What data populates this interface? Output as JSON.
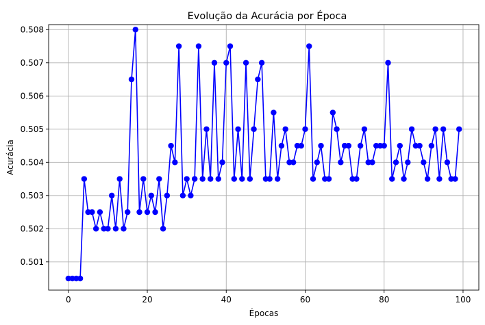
{
  "chart_data": {
    "type": "line",
    "title": "Evolução da Acurácia por Época",
    "xlabel": "Épocas",
    "ylabel": "Acurácia",
    "xlim": [
      -5,
      104
    ],
    "ylim": [
      0.50015,
      0.50815
    ],
    "xticks": [
      0,
      20,
      40,
      60,
      80,
      100
    ],
    "yticks": [
      0.501,
      0.502,
      0.503,
      0.504,
      0.505,
      0.506,
      0.507,
      0.508
    ],
    "grid": true,
    "color": "#0000ff",
    "series": [
      {
        "x": [
          0,
          1,
          2,
          3,
          4,
          5,
          6,
          7,
          8,
          9,
          10,
          11,
          12,
          13,
          14,
          15,
          16,
          17,
          18,
          19,
          20,
          21,
          22,
          23,
          24,
          25,
          26,
          27,
          28,
          29,
          30,
          31,
          32,
          33,
          34,
          35,
          36,
          37,
          38,
          39,
          40,
          41,
          42,
          43,
          44,
          45,
          46,
          47,
          48,
          49,
          50,
          51,
          52,
          53,
          54,
          55,
          56,
          57,
          58,
          59,
          60,
          61,
          62,
          63,
          64,
          65,
          66,
          67,
          68,
          69,
          70,
          71,
          72,
          73,
          74,
          75,
          76,
          77,
          78,
          79,
          80,
          81,
          82,
          83,
          84,
          85,
          86,
          87,
          88,
          89,
          90,
          91,
          92,
          93,
          94,
          95,
          96,
          97,
          98,
          99
        ],
        "values": [
          0.5005,
          0.5005,
          0.5005,
          0.5005,
          0.5035,
          0.5025,
          0.5025,
          0.502,
          0.5025,
          0.502,
          0.502,
          0.503,
          0.502,
          0.5035,
          0.502,
          0.5025,
          0.5065,
          0.508,
          0.5025,
          0.5035,
          0.5025,
          0.503,
          0.5025,
          0.5035,
          0.502,
          0.503,
          0.5045,
          0.504,
          0.5075,
          0.503,
          0.5035,
          0.503,
          0.5035,
          0.5075,
          0.5035,
          0.505,
          0.5035,
          0.507,
          0.5035,
          0.504,
          0.507,
          0.5075,
          0.5035,
          0.505,
          0.5035,
          0.507,
          0.5035,
          0.505,
          0.5065,
          0.507,
          0.5035,
          0.5035,
          0.5055,
          0.5035,
          0.5045,
          0.505,
          0.504,
          0.504,
          0.5045,
          0.5045,
          0.505,
          0.5075,
          0.5035,
          0.504,
          0.5045,
          0.5035,
          0.5035,
          0.5055,
          0.505,
          0.504,
          0.5045,
          0.5045,
          0.5035,
          0.5035,
          0.5045,
          0.505,
          0.504,
          0.504,
          0.5045,
          0.5045,
          0.5045,
          0.507,
          0.5035,
          0.504,
          0.5045,
          0.5035,
          0.504,
          0.505,
          0.5045,
          0.5045,
          0.504,
          0.5035,
          0.5045,
          0.505,
          0.5035,
          0.505,
          0.504,
          0.5035,
          0.5035,
          0.505
        ]
      }
    ]
  }
}
